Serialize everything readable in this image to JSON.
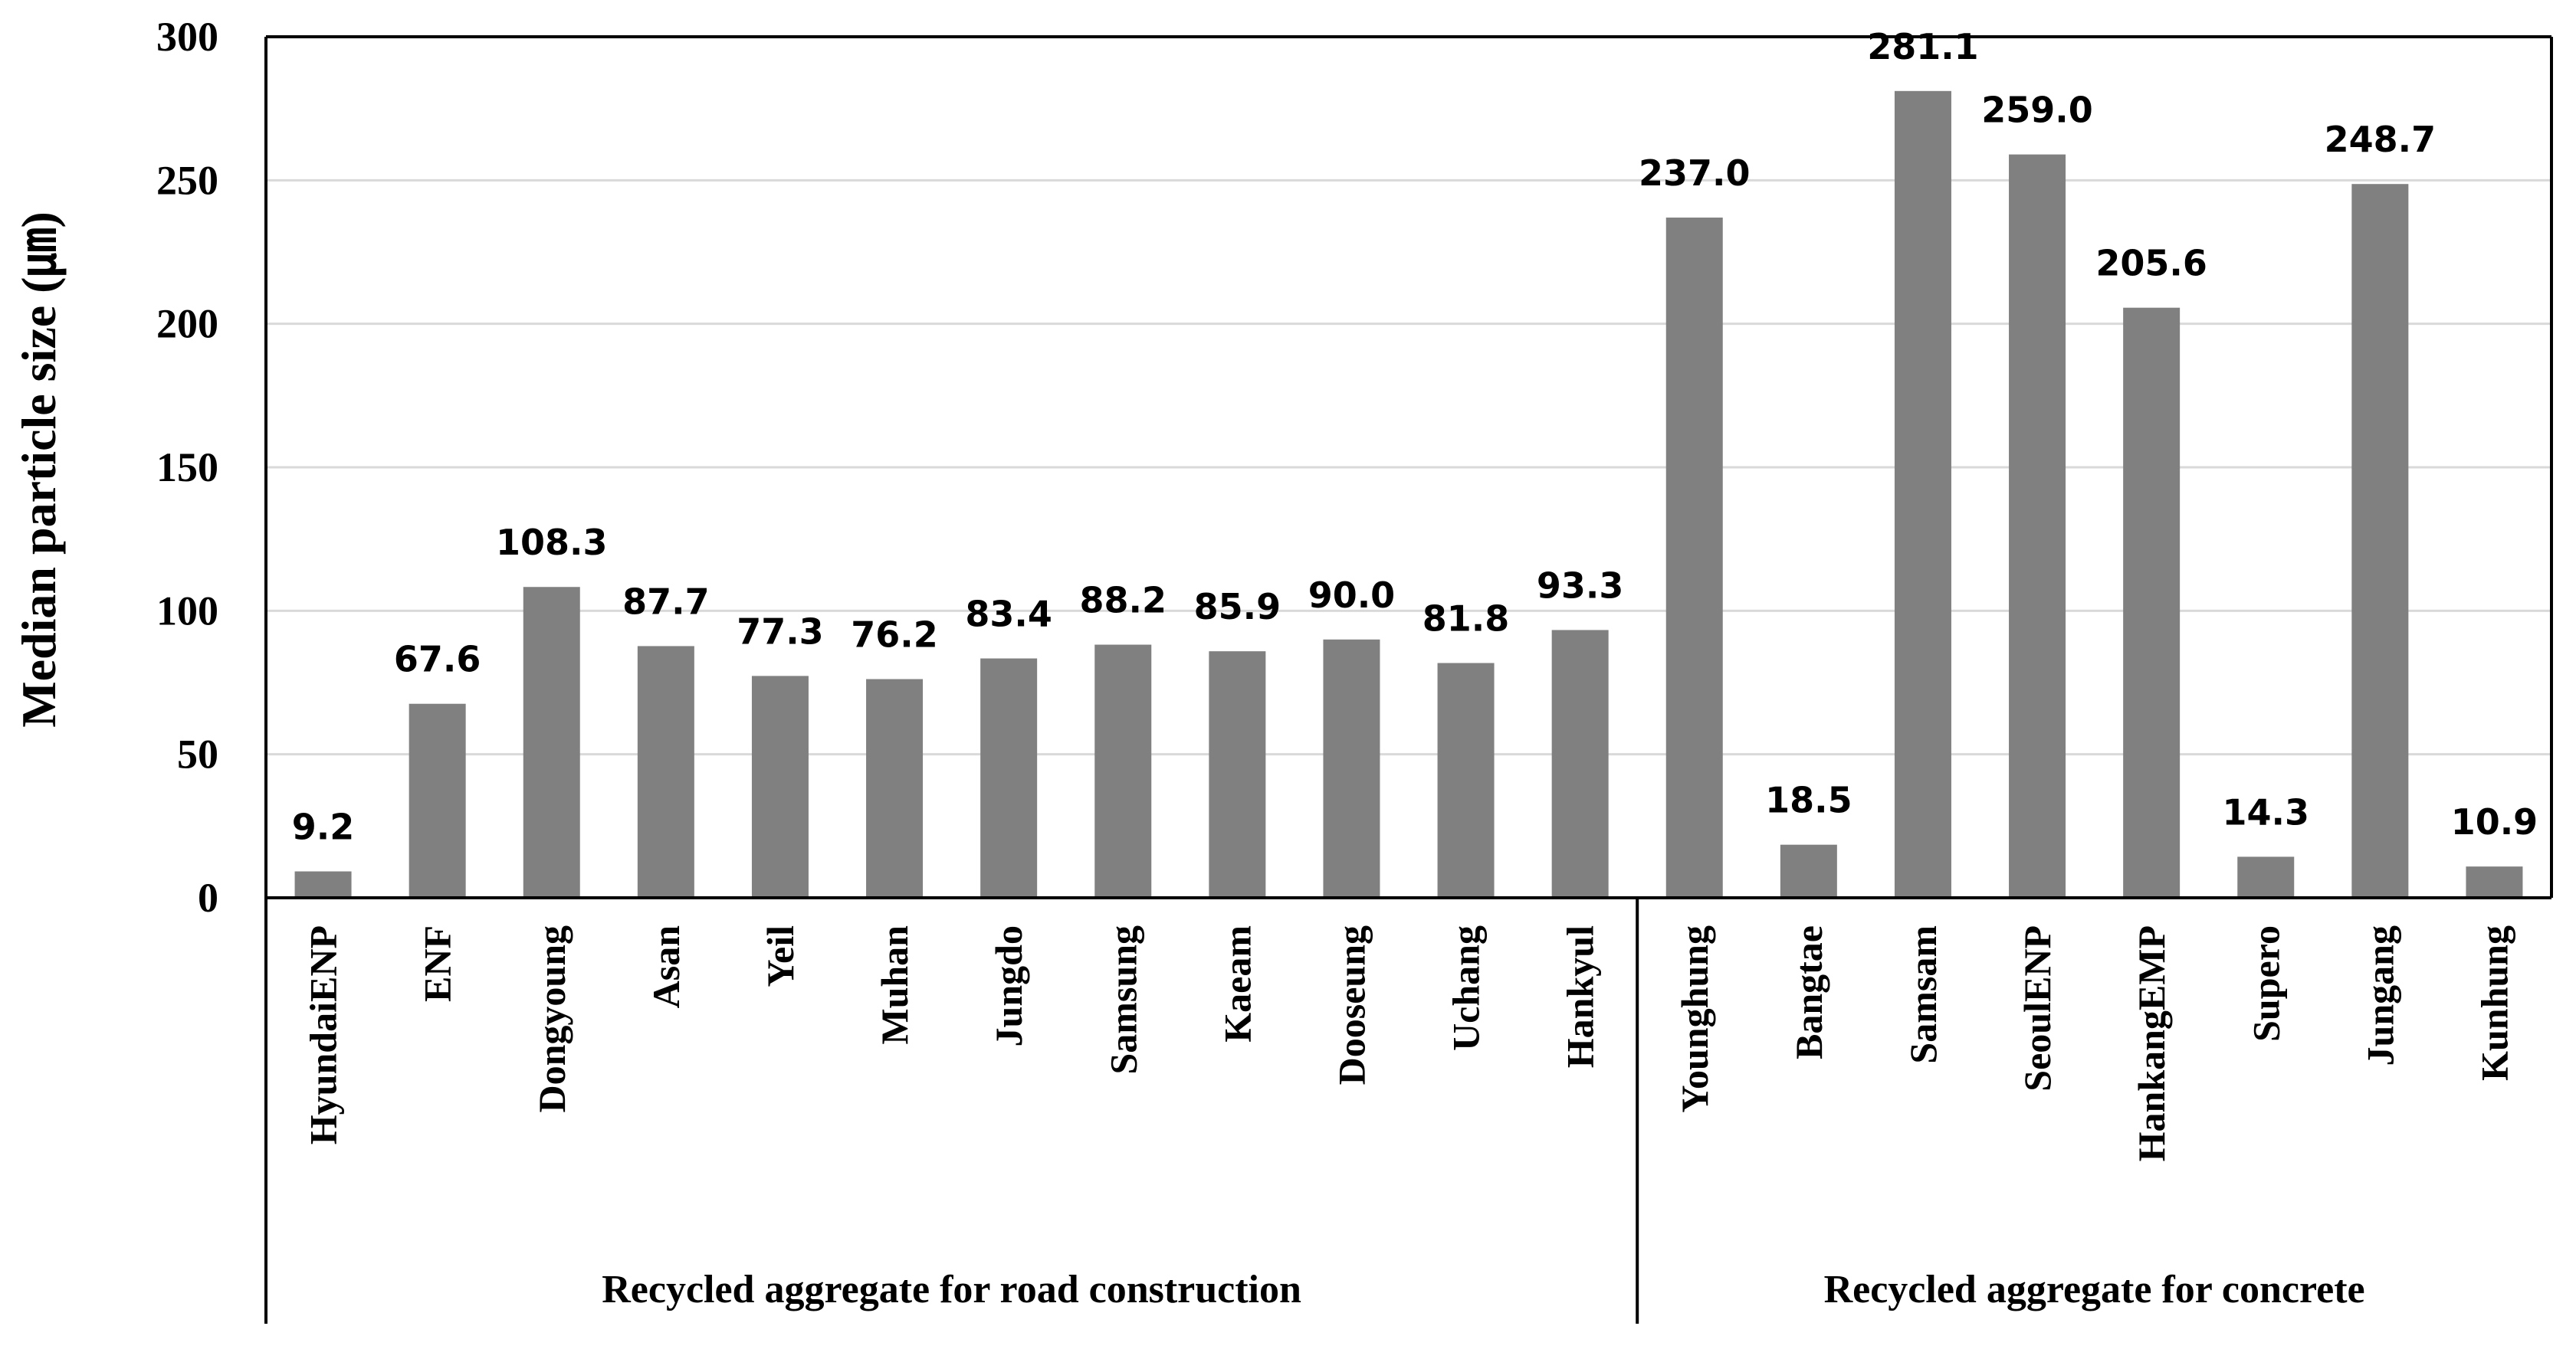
{
  "chart_data": {
    "type": "bar",
    "title": "",
    "ylabel": "Median particle size (㎛)",
    "xlabel": "",
    "ylim": [
      0,
      300
    ],
    "yticks": [
      0,
      50,
      100,
      150,
      200,
      250,
      300
    ],
    "grid": true,
    "bar_color": "#808080",
    "categories": [
      "HyundaiENP",
      "ENF",
      "Dongyoung",
      "Asan",
      "Yeil",
      "Muhan",
      "Jungdo",
      "Samsung",
      "Kaeam",
      "Dooseung",
      "Uchang",
      "Hankyul",
      "Younghung",
      "Bangtae",
      "Samsam",
      "SeoulENP",
      "HankangEMP",
      "Supero",
      "Jungang",
      "Kunhung"
    ],
    "values": [
      9.2,
      67.6,
      108.3,
      87.7,
      77.3,
      76.2,
      83.4,
      88.2,
      85.9,
      90.0,
      81.8,
      93.3,
      237.0,
      18.5,
      281.1,
      259.0,
      205.6,
      14.3,
      248.7,
      10.9
    ],
    "value_labels": [
      "9.2",
      "67.6",
      "108.3",
      "87.7",
      "77.3",
      "76.2",
      "83.4",
      "88.2",
      "85.9",
      "90.0",
      "81.8",
      "93.3",
      "237.0",
      "18.5",
      "281.1",
      "259.0",
      "205.6",
      "14.3",
      "248.7",
      "10.9"
    ],
    "groups": [
      {
        "label": "Recycled aggregate for road construction",
        "start": 0,
        "end": 11
      },
      {
        "label": "Recycled aggregate for concrete",
        "start": 12,
        "end": 19
      }
    ]
  }
}
